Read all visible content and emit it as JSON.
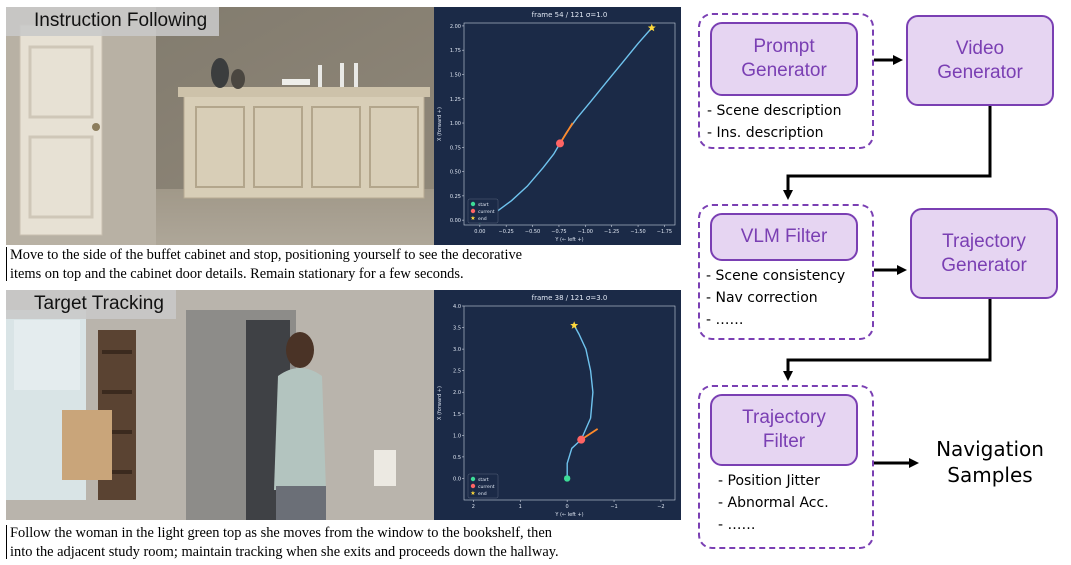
{
  "colors": {
    "purple": "#7a3fb3",
    "box_fill": "#e6d5f2",
    "plot_bg": "#1b2a47",
    "path": "#6fc3ee",
    "start": "#3ddc97",
    "current": "#ff6464",
    "end": "#ffd93b"
  },
  "left": {
    "instruction": {
      "title": "Instruction Following",
      "caption": [
        "Move to the side of the buffet cabinet and stop, positioning yourself to see the decorative",
        "items on top and the cabinet door details. Remain stationary for a few seconds."
      ],
      "plot": {
        "header": "frame 54 / 121  σ=1.0",
        "xlabel": "Y (← left +)",
        "ylabel": "X (forward +)",
        "xticks": [
          "0.00",
          "−0.25",
          "−0.50",
          "−0.75",
          "−1.00",
          "−1.25",
          "−1.50",
          "−1.75"
        ],
        "yticks": [
          "0.00",
          "0.25",
          "0.50",
          "0.75",
          "1.00",
          "1.25",
          "1.50",
          "1.75",
          "2.00"
        ],
        "legend": [
          "start",
          "current",
          "end"
        ]
      }
    },
    "tracking": {
      "title": "Target Tracking",
      "caption": [
        "Follow the woman in the light green top as she moves from the window to the bookshelf, then",
        "into the adjacent study room; maintain tracking when she exits and proceeds down the hallway."
      ],
      "plot": {
        "header": "frame 38 / 121  σ=3.0",
        "xlabel": "Y (← left +)",
        "ylabel": "X (forward +)",
        "xticks": [
          "2",
          "1",
          "0",
          "−1",
          "−2"
        ],
        "yticks": [
          "0.0",
          "0.5",
          "1.0",
          "1.5",
          "2.0",
          "2.5",
          "3.0",
          "3.5",
          "4.0"
        ],
        "legend": [
          "start",
          "current",
          "end"
        ]
      }
    }
  },
  "chart_data": [
    {
      "type": "line",
      "title": "frame 54 / 121  σ=1.0",
      "xlabel": "Y (← left +)",
      "ylabel": "X (forward +)",
      "xlim": [
        0.15,
        -1.85
      ],
      "ylim": [
        -0.05,
        2.03
      ],
      "series": [
        {
          "name": "trajectory",
          "x": [
            0.0,
            -0.15,
            -0.3,
            -0.45,
            -0.6,
            -0.7,
            -0.76,
            -0.82,
            -0.92,
            -1.05,
            -1.2,
            -1.35,
            -1.5,
            -1.63
          ],
          "y": [
            0.0,
            0.08,
            0.2,
            0.35,
            0.54,
            0.68,
            0.79,
            0.9,
            1.05,
            1.22,
            1.42,
            1.62,
            1.82,
            1.98
          ]
        }
      ],
      "points": {
        "start": [
          0.0,
          0.0
        ],
        "current": [
          -0.76,
          0.79
        ],
        "end": [
          -1.63,
          1.98
        ]
      },
      "heading_arrow": {
        "from": [
          -0.76,
          0.79
        ],
        "to": [
          -0.88,
          1.0
        ]
      },
      "legend_position": "bottom-left"
    },
    {
      "type": "line",
      "title": "frame 38 / 121  σ=3.0",
      "xlabel": "Y (← left +)",
      "ylabel": "X (forward +)",
      "xlim": [
        2.2,
        -2.3
      ],
      "ylim": [
        -0.5,
        4.0
      ],
      "series": [
        {
          "name": "trajectory",
          "x": [
            0.0,
            0.0,
            -0.1,
            -0.3,
            -0.5,
            -0.55,
            -0.5,
            -0.4,
            -0.25,
            -0.15
          ],
          "y": [
            0.0,
            0.35,
            0.7,
            0.9,
            1.4,
            2.0,
            2.5,
            3.0,
            3.35,
            3.55
          ]
        }
      ],
      "points": {
        "start": [
          0.0,
          0.0
        ],
        "current": [
          -0.3,
          0.9
        ],
        "end": [
          -0.15,
          3.55
        ]
      },
      "heading_arrow": {
        "from": [
          -0.3,
          0.9
        ],
        "to": [
          -0.65,
          1.15
        ]
      },
      "legend_position": "bottom-left"
    }
  ],
  "diagram": {
    "prompt_generator": {
      "line1": "Prompt",
      "line2": "Generator",
      "bullets": [
        "- Scene description",
        "- Ins. description"
      ]
    },
    "video_generator": {
      "line1": "Video",
      "line2": "Generator"
    },
    "vlm_filter": {
      "label": "VLM Filter",
      "bullets": [
        "- Scene consistency",
        "- Nav correction",
        "- ……"
      ]
    },
    "trajectory_generator": {
      "line1": "Trajectory",
      "line2": "Generator"
    },
    "trajectory_filter": {
      "line1": "Trajectory",
      "line2": "Filter",
      "bullets": [
        "- Position Jitter",
        "- Abnormal Acc.",
        "- ……"
      ]
    },
    "output": {
      "line1": "Navigation",
      "line2": "Samples"
    }
  }
}
